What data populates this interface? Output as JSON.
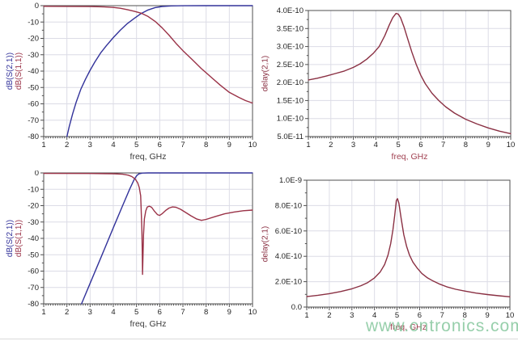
{
  "watermark": {
    "text": "www.cntronics.com",
    "color": "#7dc396"
  },
  "colors": {
    "background": "#ffffff",
    "grid": "#dcdce6",
    "axis": "#4f4f4f",
    "tick_text": "#1f1f1f",
    "s21_blue": "#32329a",
    "s11_red": "#9a3247",
    "delay_red": "#8a3043"
  },
  "chart_data": [
    {
      "name": "s-parameters-top-left",
      "type": "line",
      "title": "",
      "xlabel": "freq, GHz",
      "xlabel_color": "#3a3a3a",
      "ylabel": [
        {
          "text": "dB(S(2,1))",
          "color": "#32329a"
        },
        {
          "text": "dB(S(1,1))",
          "color": "#9a3247"
        }
      ],
      "xlim": [
        1,
        10
      ],
      "ylim": [
        -80,
        0
      ],
      "x_ticks": [
        1,
        2,
        3,
        4,
        5,
        6,
        7,
        8,
        9,
        10
      ],
      "x_minor_step": 0.1,
      "y_ticks": [
        {
          "v": 0,
          "label": "0"
        },
        {
          "v": -10,
          "label": "-10"
        },
        {
          "v": -20,
          "label": "-20"
        },
        {
          "v": -30,
          "label": "-30"
        },
        {
          "v": -40,
          "label": "-40"
        },
        {
          "v": -50,
          "label": "-50"
        },
        {
          "v": -60,
          "label": "-60"
        },
        {
          "v": -70,
          "label": "-70"
        },
        {
          "v": -80,
          "label": "-80"
        }
      ],
      "grid": true,
      "legend": "none",
      "series": [
        {
          "name": "dB(S(2,1))",
          "color": "#32329a",
          "points": [
            [
              2.0,
              -80
            ],
            [
              2.1,
              -74
            ],
            [
              2.25,
              -66
            ],
            [
              2.4,
              -59
            ],
            [
              2.6,
              -51
            ],
            [
              2.8,
              -45
            ],
            [
              3.0,
              -39.5
            ],
            [
              3.2,
              -34.5
            ],
            [
              3.45,
              -29
            ],
            [
              3.7,
              -24.5
            ],
            [
              4.0,
              -19.5
            ],
            [
              4.3,
              -15
            ],
            [
              4.6,
              -11
            ],
            [
              4.9,
              -7.8
            ],
            [
              5.2,
              -4.8
            ],
            [
              5.5,
              -2.6
            ],
            [
              5.8,
              -1.2
            ],
            [
              6.1,
              -0.5
            ],
            [
              6.5,
              -0.15
            ],
            [
              7.0,
              -0.05
            ],
            [
              8.0,
              0
            ],
            [
              9.0,
              0
            ],
            [
              10,
              0
            ]
          ]
        },
        {
          "name": "dB(S(1,1))",
          "color": "#9a3247",
          "points": [
            [
              1,
              -0.4
            ],
            [
              2,
              -0.45
            ],
            [
              3,
              -0.55
            ],
            [
              3.5,
              -0.7
            ],
            [
              4.0,
              -1.1
            ],
            [
              4.3,
              -1.6
            ],
            [
              4.6,
              -2.4
            ],
            [
              4.9,
              -3.4
            ],
            [
              5.2,
              -4.6
            ],
            [
              5.5,
              -6.6
            ],
            [
              5.8,
              -9.6
            ],
            [
              6.1,
              -13.5
            ],
            [
              6.4,
              -18
            ],
            [
              6.7,
              -23
            ],
            [
              7.0,
              -27.5
            ],
            [
              7.4,
              -33
            ],
            [
              7.8,
              -38.5
            ],
            [
              8.2,
              -43.5
            ],
            [
              8.6,
              -48.5
            ],
            [
              9.0,
              -53
            ],
            [
              9.4,
              -56
            ],
            [
              9.7,
              -58
            ],
            [
              10,
              -59.5
            ]
          ]
        }
      ]
    },
    {
      "name": "group-delay-top-right",
      "type": "line",
      "title": "",
      "xlabel": "freq, GHz",
      "xlabel_color": "#a04050",
      "ylabel": [
        {
          "text": "delay(2,1)",
          "color": "#8a3043"
        }
      ],
      "xlim": [
        1,
        10
      ],
      "ylim": [
        5e-11,
        4e-10
      ],
      "x_ticks": [
        1,
        2,
        3,
        4,
        5,
        6,
        7,
        8,
        9,
        10
      ],
      "x_minor_step": 0.1,
      "y_ticks": [
        {
          "v": 4e-10,
          "label": "4.0E-10"
        },
        {
          "v": 3.5e-10,
          "label": "3.5E-10"
        },
        {
          "v": 3e-10,
          "label": "3.0E-10"
        },
        {
          "v": 2.5e-10,
          "label": "2.5E-10"
        },
        {
          "v": 2e-10,
          "label": "2.0E-10"
        },
        {
          "v": 1.5e-10,
          "label": "1.5E-10"
        },
        {
          "v": 1e-10,
          "label": "1.0E-10"
        },
        {
          "v": 5e-11,
          "label": "5.0E-11"
        }
      ],
      "grid": true,
      "legend": "none",
      "series": [
        {
          "name": "delay(2,1)",
          "color": "#8a3043",
          "points": [
            [
              1,
              2.07e-10
            ],
            [
              1.4,
              2.12e-10
            ],
            [
              1.8,
              2.18e-10
            ],
            [
              2.2,
              2.25e-10
            ],
            [
              2.6,
              2.32e-10
            ],
            [
              3.0,
              2.42e-10
            ],
            [
              3.3,
              2.52e-10
            ],
            [
              3.6,
              2.65e-10
            ],
            [
              3.9,
              2.82e-10
            ],
            [
              4.15,
              3e-10
            ],
            [
              4.4,
              3.3e-10
            ],
            [
              4.6,
              3.6e-10
            ],
            [
              4.75,
              3.8e-10
            ],
            [
              4.9,
              3.92e-10
            ],
            [
              5.0,
              3.9e-10
            ],
            [
              5.1,
              3.8e-10
            ],
            [
              5.25,
              3.55e-10
            ],
            [
              5.4,
              3.25e-10
            ],
            [
              5.6,
              2.85e-10
            ],
            [
              5.8,
              2.5e-10
            ],
            [
              6.0,
              2.2e-10
            ],
            [
              6.2,
              1.97e-10
            ],
            [
              6.5,
              1.7e-10
            ],
            [
              6.8,
              1.5e-10
            ],
            [
              7.1,
              1.33e-10
            ],
            [
              7.5,
              1.15e-10
            ],
            [
              8.0,
              9.8e-11
            ],
            [
              8.5,
              8.5e-11
            ],
            [
              9.0,
              7.4e-11
            ],
            [
              9.5,
              6.5e-11
            ],
            [
              10,
              5.8e-11
            ]
          ]
        }
      ]
    },
    {
      "name": "s-parameters-bottom-left",
      "type": "line",
      "title": "",
      "xlabel": "freq, GHz",
      "xlabel_color": "#3a3a3a",
      "ylabel": [
        {
          "text": "dB(S(2,1))",
          "color": "#32329a"
        },
        {
          "text": "dB(S(1,1))",
          "color": "#9a3247"
        }
      ],
      "xlim": [
        1,
        10
      ],
      "ylim": [
        -80,
        0
      ],
      "x_ticks": [
        1,
        2,
        3,
        4,
        5,
        6,
        7,
        8,
        9,
        10
      ],
      "x_minor_step": 0.1,
      "y_ticks": [
        {
          "v": 0,
          "label": "0"
        },
        {
          "v": -10,
          "label": "-10"
        },
        {
          "v": -20,
          "label": "-20"
        },
        {
          "v": -30,
          "label": "-30"
        },
        {
          "v": -40,
          "label": "-40"
        },
        {
          "v": -50,
          "label": "-50"
        },
        {
          "v": -60,
          "label": "-60"
        },
        {
          "v": -70,
          "label": "-70"
        },
        {
          "v": -80,
          "label": "-80"
        }
      ],
      "grid": true,
      "legend": "none",
      "series": [
        {
          "name": "dB(S(2,1))",
          "color": "#32329a",
          "points": [
            [
              2.63,
              -80
            ],
            [
              3.0,
              -67.5
            ],
            [
              3.5,
              -50.5
            ],
            [
              4.0,
              -33.5
            ],
            [
              4.4,
              -20
            ],
            [
              4.7,
              -10
            ],
            [
              4.9,
              -4
            ],
            [
              5.0,
              -1.8
            ],
            [
              5.1,
              -0.6
            ],
            [
              5.25,
              -0.1
            ],
            [
              5.5,
              0
            ],
            [
              10,
              0
            ]
          ]
        },
        {
          "name": "dB(S(1,1))",
          "color": "#9a3247",
          "points": [
            [
              1,
              -0.3
            ],
            [
              3,
              -0.35
            ],
            [
              4,
              -0.5
            ],
            [
              4.4,
              -0.8
            ],
            [
              4.65,
              -1.4
            ],
            [
              4.8,
              -2.2
            ],
            [
              4.95,
              -3.8
            ],
            [
              5.05,
              -6
            ],
            [
              5.12,
              -9
            ],
            [
              5.18,
              -14
            ],
            [
              5.2,
              -22
            ],
            [
              5.23,
              -35
            ],
            [
              5.25,
              -50
            ],
            [
              5.26,
              -62
            ],
            [
              5.28,
              -50
            ],
            [
              5.3,
              -38
            ],
            [
              5.34,
              -28
            ],
            [
              5.4,
              -23.2
            ],
            [
              5.46,
              -20.9
            ],
            [
              5.55,
              -20.3
            ],
            [
              5.65,
              -21
            ],
            [
              5.78,
              -23.5
            ],
            [
              5.9,
              -25.5
            ],
            [
              6.0,
              -26
            ],
            [
              6.1,
              -25
            ],
            [
              6.25,
              -23
            ],
            [
              6.4,
              -21.5
            ],
            [
              6.55,
              -20.8
            ],
            [
              6.7,
              -21
            ],
            [
              6.9,
              -22.2
            ],
            [
              7.1,
              -24
            ],
            [
              7.35,
              -26.2
            ],
            [
              7.6,
              -28.2
            ],
            [
              7.8,
              -29
            ],
            [
              8.0,
              -28.4
            ],
            [
              8.4,
              -26.6
            ],
            [
              8.8,
              -25
            ],
            [
              9.2,
              -23.9
            ],
            [
              9.6,
              -23.1
            ],
            [
              10,
              -22.7
            ]
          ]
        }
      ]
    },
    {
      "name": "group-delay-bottom-right",
      "type": "line",
      "title": "",
      "xlabel": "freq, GHz",
      "xlabel_color": "#a04050",
      "ylabel": [
        {
          "text": "delay(2,1)",
          "color": "#8a3043"
        }
      ],
      "xlim": [
        1,
        10
      ],
      "ylim": [
        0,
        1e-09
      ],
      "x_ticks": [
        1,
        2,
        3,
        4,
        5,
        6,
        7,
        8,
        9,
        10
      ],
      "x_minor_step": 0.1,
      "y_ticks": [
        {
          "v": 1e-09,
          "label": "1.0E-9"
        },
        {
          "v": 8e-10,
          "label": "8.0E-10"
        },
        {
          "v": 6e-10,
          "label": "6.0E-10"
        },
        {
          "v": 4e-10,
          "label": "4.0E-10"
        },
        {
          "v": 2e-10,
          "label": "2.0E-10"
        },
        {
          "v": 0,
          "label": "0.0"
        }
      ],
      "grid": true,
      "legend": "none",
      "series": [
        {
          "name": "delay(2,1)",
          "color": "#8a3043",
          "points": [
            [
              1,
              8.3e-11
            ],
            [
              1.5,
              9.3e-11
            ],
            [
              2,
              1.06e-10
            ],
            [
              2.5,
              1.22e-10
            ],
            [
              3,
              1.44e-10
            ],
            [
              3.4,
              1.68e-10
            ],
            [
              3.7,
              1.93e-10
            ],
            [
              4.0,
              2.3e-10
            ],
            [
              4.25,
              2.75e-10
            ],
            [
              4.45,
              3.35e-10
            ],
            [
              4.6,
              4.1e-10
            ],
            [
              4.72,
              5e-10
            ],
            [
              4.82,
              6.1e-10
            ],
            [
              4.9,
              7.3e-10
            ],
            [
              4.97,
              8.4e-10
            ],
            [
              5.02,
              8.55e-10
            ],
            [
              5.08,
              8.2e-10
            ],
            [
              5.18,
              7e-10
            ],
            [
              5.3,
              5.7e-10
            ],
            [
              5.42,
              4.8e-10
            ],
            [
              5.55,
              4.1e-10
            ],
            [
              5.7,
              3.55e-10
            ],
            [
              5.9,
              3.05e-10
            ],
            [
              6.1,
              2.65e-10
            ],
            [
              6.35,
              2.3e-10
            ],
            [
              6.6,
              2.05e-10
            ],
            [
              6.9,
              1.8e-10
            ],
            [
              7.2,
              1.6e-10
            ],
            [
              7.6,
              1.4e-10
            ],
            [
              8.0,
              1.26e-10
            ],
            [
              8.5,
              1.1e-10
            ],
            [
              9.0,
              9.9e-11
            ],
            [
              9.5,
              8.9e-11
            ],
            [
              10,
              8.1e-11
            ]
          ]
        }
      ]
    }
  ]
}
